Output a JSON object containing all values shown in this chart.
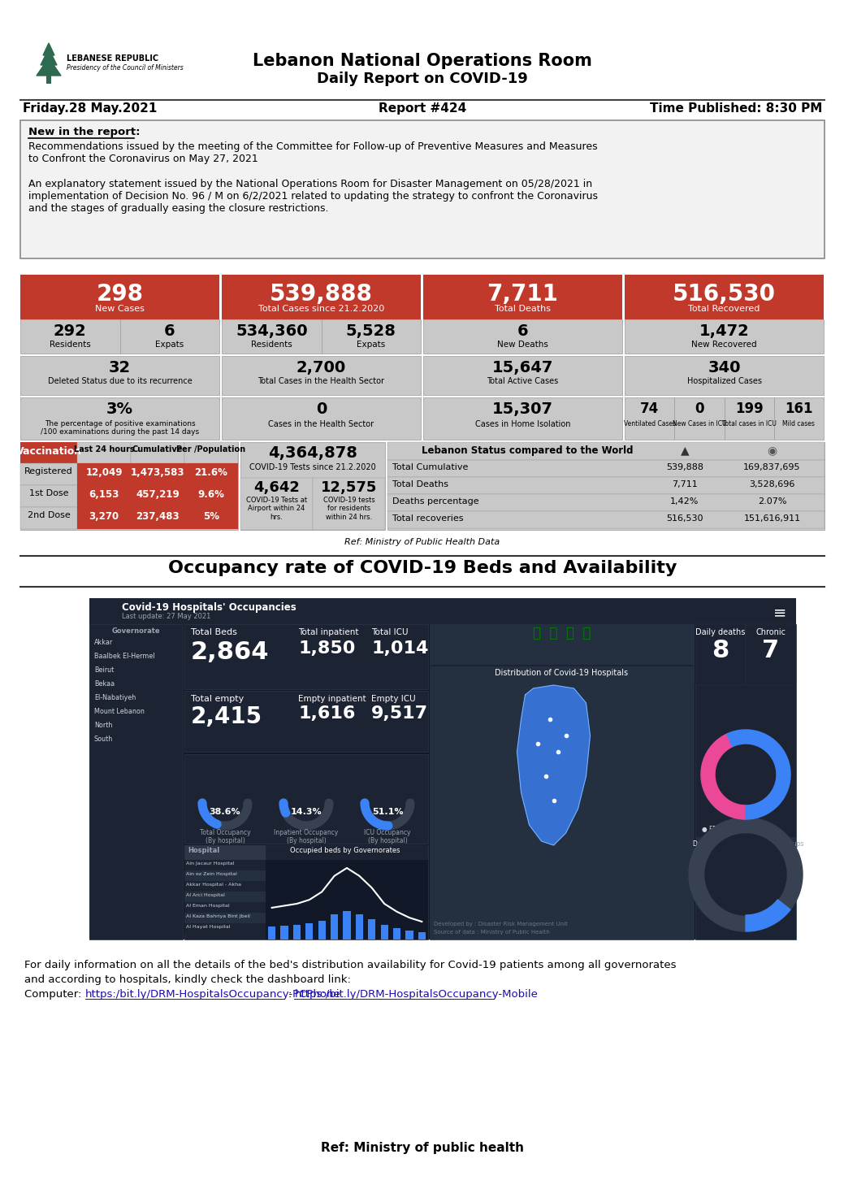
{
  "title_line1": "Lebanon National Operations Room",
  "title_line2": "Daily Report on COVID-19",
  "date": "Friday.28 May.2021",
  "report_num": "Report #424",
  "time_published": "Time Published: 8:30 PM",
  "new_in_report_text1": "Recommendations issued by the meeting of the Committee for Follow-up of Preventive Measures and Measures\nto Confront the Coronavirus on May 27, 2021",
  "new_in_report_text2": "An explanatory statement issued by the National Operations Room for Disaster Management on 05/28/2021 in\nimplementation of Decision No. 96 / M on 6/2/2021 related to updating the strategy to confront the Coronavirus\nand the stages of gradually easing the closure restrictions.",
  "stats": {
    "new_cases": "298",
    "new_cases_label": "New Cases",
    "residents": "292",
    "residents_label": "Residents",
    "expats": "6",
    "expats_label": "Expats",
    "total_cases": "539,888",
    "total_cases_label": "Total Cases since 21.2.2020",
    "residents2": "534,360",
    "residents2_label": "Residents",
    "expats2": "5,528",
    "expats2_label": "Expats",
    "total_deaths": "7,711",
    "total_deaths_label": "Total Deaths",
    "new_deaths": "6",
    "new_deaths_label": "New Deaths",
    "total_recovered": "516,530",
    "total_recovered_label": "Total Recovered",
    "new_recovered": "1,472",
    "new_recovered_label": "New Recovered",
    "deleted": "32",
    "deleted_label": "Deleted Status due to its recurrence",
    "health_cases": "2,700",
    "health_cases_label": "Total Cases in the Health Sector",
    "active_cases": "15,647",
    "active_cases_label": "Total Active Cases",
    "hospitalized": "340",
    "hospitalized_label": "Hospitalized Cases",
    "positive_pct": "3%",
    "positive_pct_label": "The percentage of positive examinations\n/100 examinations during the past 14 days",
    "cases_health_sector": "0",
    "cases_health_sector_label": "Cases in the Health Sector",
    "home_isolation": "15,307",
    "home_isolation_label": "Cases in Home Isolation",
    "ventilated": "74",
    "ventilated_label": "Ventilated Cases",
    "new_icu": "0",
    "new_icu_label": "New Cases in ICU",
    "total_icu": "199",
    "total_icu_label": "Total cases in ICU",
    "mild": "161",
    "mild_label": "Mild cases"
  },
  "vaccination": {
    "header": "Vaccination",
    "col1": "Last 24 hours",
    "col2": "Cumulative",
    "col3": "Per /Population",
    "registered": [
      "Registered",
      "12,049",
      "1,473,583",
      "21.6%"
    ],
    "dose1": [
      "1st Dose",
      "6,153",
      "457,219",
      "9.6%"
    ],
    "dose2": [
      "2nd Dose",
      "3,270",
      "237,483",
      "5%"
    ]
  },
  "tests": {
    "total": "4,364,878",
    "total_label": "COVID-19 Tests since 21.2.2020",
    "airport": "4,642",
    "airport_label": "COVID-19 Tests at\nAirport within 24\nhrs.",
    "residents": "12,575",
    "residents_label": "COVID-19 tests\nfor residents\nwithin 24 hrs."
  },
  "world_comparison": {
    "header": "Lebanon Status compared to the World",
    "labels": [
      "Total Cumulative",
      "Total Deaths",
      "Deaths percentage",
      "Total recoveries"
    ],
    "lebanon": [
      "539,888",
      "7,711",
      "1,42%",
      "516,530"
    ],
    "world": [
      "169,837,695",
      "3,528,696",
      "2.07%",
      "151,616,911"
    ]
  },
  "ref_ministry": "Ref: Ministry of Public Health Data",
  "occupancy_title": "Occupancy rate of COVID-19 Beds and Availability",
  "footer_text1": "For daily information on all the details of the bed's distribution availability for Covid-19 patients among all governorates",
  "footer_text2": "and according to hospitals, kindly check the dashboard link:",
  "footer_link_prefix": "Computer: ",
  "footer_link1_text": "https:/bit.ly/DRM-HospitalsOccupancy-PCPhone",
  "footer_link_sep": ":",
  "footer_link2_text": "https:/bit.ly/DRM-HospitalsOccupancy-Mobile",
  "footer_ref": "Ref: Ministry of public health",
  "RED": "#C0392B",
  "LGRAY": "#C8C8C8",
  "DGRAY": "#999999"
}
